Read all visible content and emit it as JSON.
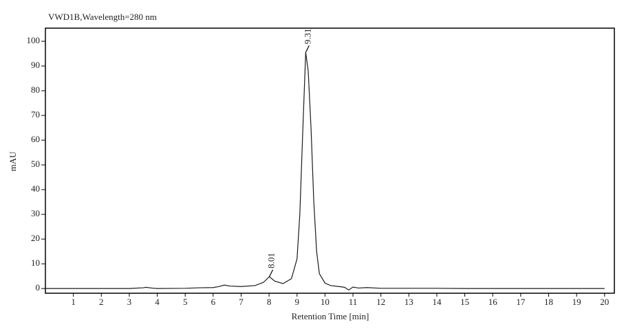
{
  "chart_data": {
    "type": "line",
    "title": "VWD1B,Wavelength=280 nm",
    "x_label": "Retention Time [min]",
    "y_label": "mAU",
    "xlim": [
      0,
      20.35
    ],
    "ylim": [
      -1.9,
      105.3
    ],
    "xticks": [
      1,
      2,
      3,
      4,
      5,
      6,
      7,
      8,
      9,
      10,
      11,
      12,
      13,
      14,
      15,
      16,
      17,
      18,
      19,
      20
    ],
    "yticks": [
      0,
      10,
      20,
      30,
      40,
      50,
      60,
      70,
      80,
      90,
      100
    ],
    "series": [
      {
        "color": "#1a1a1a",
        "x": [
          0,
          1,
          2,
          3,
          3.5,
          3.6,
          3.8,
          4,
          5,
          5.5,
          6,
          6.2,
          6.4,
          6.6,
          7,
          7.5,
          7.8,
          8.01,
          8.2,
          8.5,
          8.8,
          9.0,
          9.1,
          9.2,
          9.31,
          9.4,
          9.5,
          9.6,
          9.7,
          9.8,
          10,
          10.2,
          10.5,
          10.7,
          10.85,
          11,
          11.2,
          11.5,
          12,
          13,
          14,
          15,
          16,
          17,
          18,
          19,
          20
        ],
        "values": [
          0,
          0,
          0,
          0,
          0.3,
          0.5,
          0.2,
          0,
          0.1,
          0.3,
          0.4,
          0.8,
          1.4,
          1.0,
          0.8,
          1.2,
          2.5,
          4.8,
          3.0,
          2.0,
          4,
          12,
          30,
          62,
          95.5,
          88,
          65,
          35,
          15,
          6,
          2.2,
          1.2,
          0.8,
          0.5,
          -0.6,
          0.6,
          0.2,
          0.4,
          0.1,
          0.1,
          0.1,
          0,
          0,
          0,
          0,
          0,
          0
        ]
      }
    ],
    "annotations": [
      {
        "x": 8.01,
        "y": 4.8
      },
      {
        "x": 9.31,
        "y": 95.5
      }
    ]
  }
}
